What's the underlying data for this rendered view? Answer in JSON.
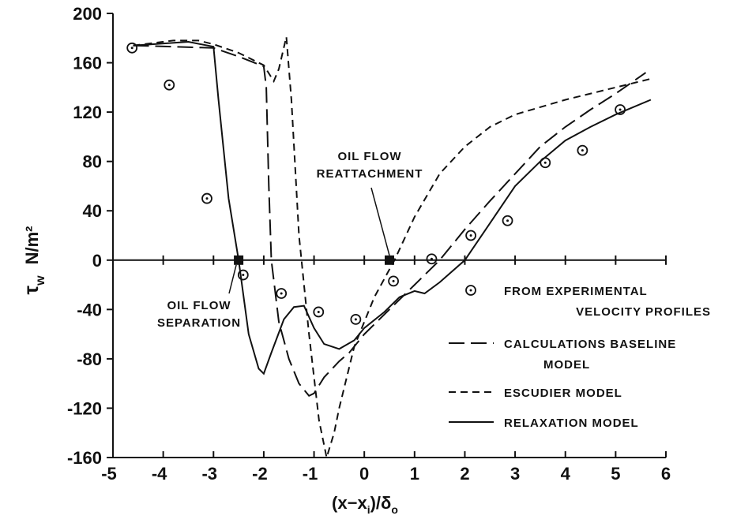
{
  "chart_data": {
    "type": "line",
    "ylabel_symbol": "τ",
    "ylabel_sub": "w",
    "ylabel_unit": "N/m²",
    "xlabel_parts": [
      "(x−x",
      "i",
      ")/δ",
      "o"
    ],
    "xlim": [
      -5,
      6
    ],
    "xticks": [
      -5,
      -4,
      -3,
      -2,
      -1,
      0,
      1,
      2,
      3,
      4,
      5,
      6
    ],
    "ylim": [
      -160,
      200
    ],
    "yticks": [
      -160,
      -120,
      -80,
      -40,
      0,
      40,
      80,
      120,
      160,
      200
    ],
    "series": [
      {
        "name": [
          "FROM EXPERIMENTAL",
          "VELOCITY PROFILES"
        ],
        "style": "points",
        "color": "#111111",
        "x": [
          -4.62,
          -3.88,
          -3.13,
          -2.41,
          -1.65,
          -0.91,
          -0.17,
          0.58,
          1.34,
          2.12,
          2.85,
          3.6,
          4.34,
          5.09
        ],
        "values": [
          172,
          142,
          50,
          -12,
          -27,
          -42,
          -48,
          -17,
          1,
          20,
          32,
          79,
          89,
          122
        ]
      },
      {
        "name": [
          "CALCULATIONS BASELINE",
          "MODEL"
        ],
        "style": "long-dash",
        "color": "#111111",
        "x": [
          -4.6,
          -3,
          -2.5,
          -2.0,
          -1.95,
          -1.9,
          -1.85,
          -1.7,
          -1.5,
          -1.3,
          -1.1,
          -1.0,
          -0.8,
          -0.5,
          -0.3,
          0,
          0.5,
          1,
          1.5,
          2,
          2.5,
          3,
          3.5,
          4,
          4.5,
          5,
          5.6
        ],
        "values": [
          174,
          172,
          165,
          157,
          140,
          60,
          0,
          -50,
          -80,
          -100,
          -110,
          -108,
          -95,
          -82,
          -75,
          -60,
          -40,
          -20,
          0,
          25,
          48,
          70,
          92,
          108,
          122,
          135,
          152
        ]
      },
      {
        "name": [
          "ESCUDIER MODEL"
        ],
        "style": "short-dash",
        "color": "#111111",
        "x": [
          -4.6,
          -3.8,
          -3.3,
          -3,
          -2.5,
          -2,
          -1.8,
          -1.7,
          -1.55,
          -1.45,
          -1.3,
          -1.1,
          -0.9,
          -0.75,
          -0.6,
          -0.5,
          -0.2,
          0.2,
          0.6,
          1,
          1.5,
          2,
          2.5,
          3,
          4,
          5,
          5.7
        ],
        "values": [
          174,
          178,
          178,
          175,
          168,
          158,
          145,
          155,
          181,
          130,
          20,
          -60,
          -130,
          -160,
          -140,
          -120,
          -70,
          -30,
          0,
          35,
          70,
          92,
          108,
          118,
          130,
          140,
          147
        ]
      },
      {
        "name": [
          "RELAXATION MODEL"
        ],
        "style": "solid",
        "color": "#111111",
        "x": [
          -4.6,
          -3.5,
          -3.0,
          -2.9,
          -2.7,
          -2.5,
          -2.3,
          -2.1,
          -2.0,
          -1.85,
          -1.6,
          -1.4,
          -1.2,
          -1.0,
          -0.8,
          -0.5,
          -0.2,
          0,
          0.4,
          0.7,
          1.0,
          1.2,
          1.5,
          2,
          2.5,
          3,
          3.5,
          4,
          4.5,
          5,
          5.7
        ],
        "values": [
          174,
          177,
          173,
          130,
          50,
          0,
          -60,
          -88,
          -92,
          -75,
          -48,
          -38,
          -37,
          -55,
          -68,
          -72,
          -65,
          -55,
          -42,
          -30,
          -25,
          -27,
          -18,
          0,
          30,
          60,
          80,
          97,
          108,
          118,
          130
        ]
      }
    ],
    "annotations": [
      {
        "text": [
          "OIL FLOW",
          "SEPARATION"
        ],
        "x": -2.5,
        "y": 0
      },
      {
        "text": [
          "OIL FLOW",
          "REATTACHMENT"
        ],
        "x": 0.5,
        "y": 0
      }
    ]
  }
}
